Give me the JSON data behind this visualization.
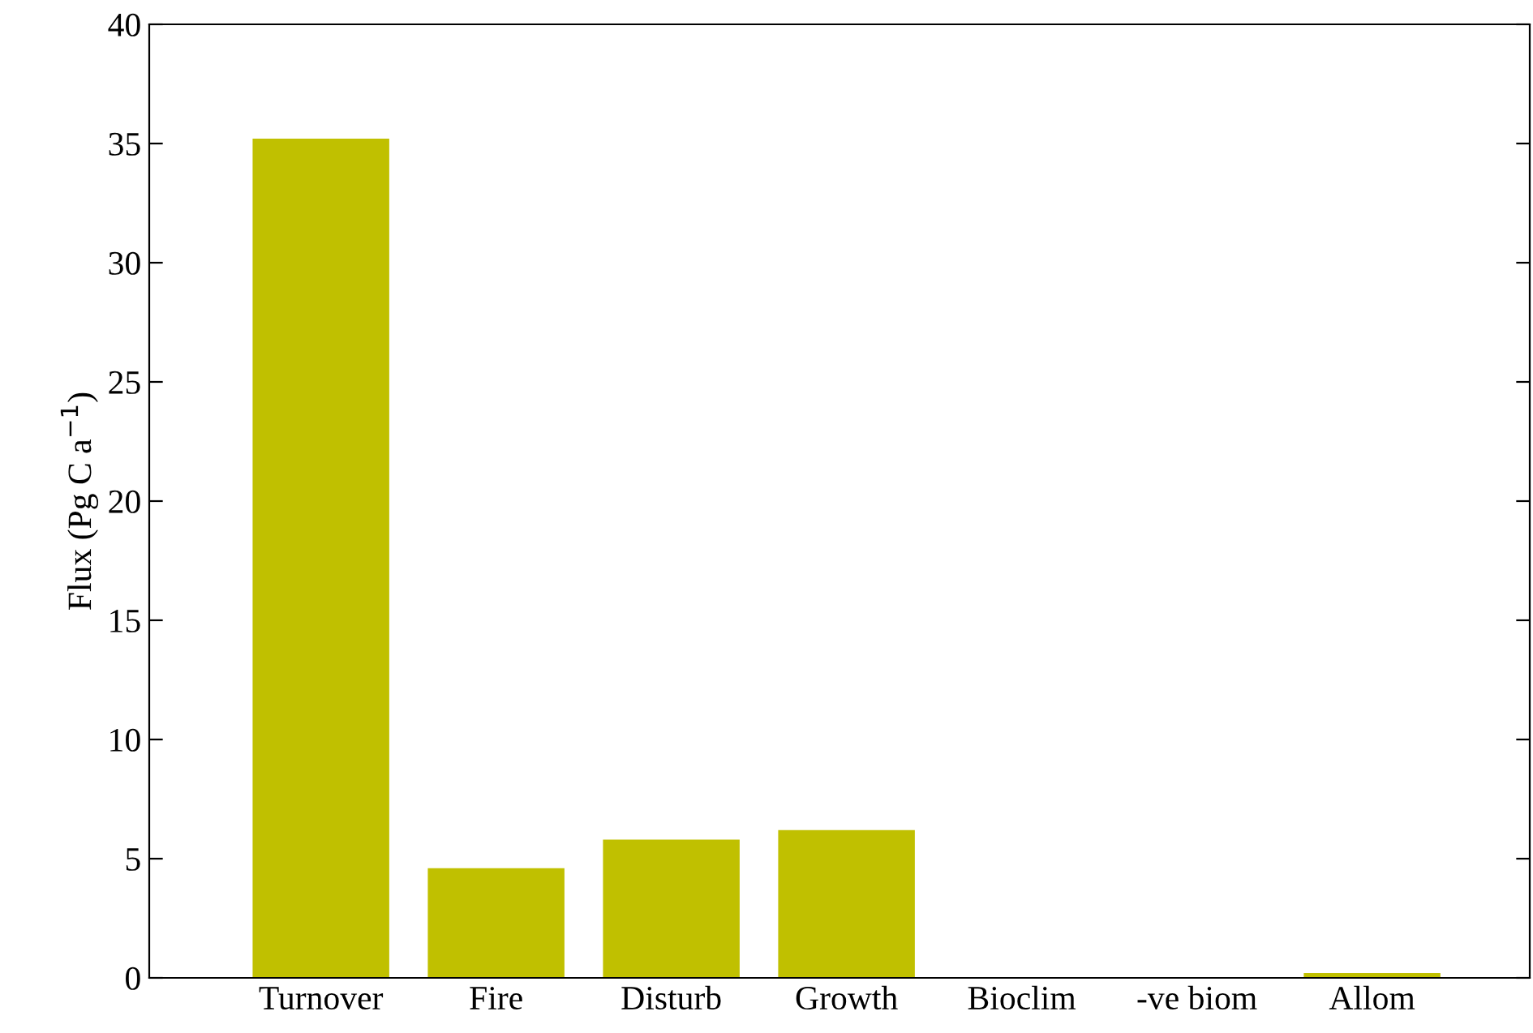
{
  "chart_data": {
    "type": "bar",
    "ylabel": "Flux (Pg C a$^{−1}$)",
    "categories": [
      "Turnover",
      "Fire",
      "Disturb",
      "Growth",
      "Bioclim",
      "-ve biom",
      "Allom"
    ],
    "values": [
      35.2,
      4.6,
      5.8,
      6.2,
      0,
      0,
      0.2
    ],
    "color": "#c0c000",
    "ylim": [
      0,
      40
    ],
    "yticks": [
      0,
      5,
      10,
      15,
      20,
      25,
      30,
      35,
      40
    ],
    "grid": false,
    "legend": false
  }
}
